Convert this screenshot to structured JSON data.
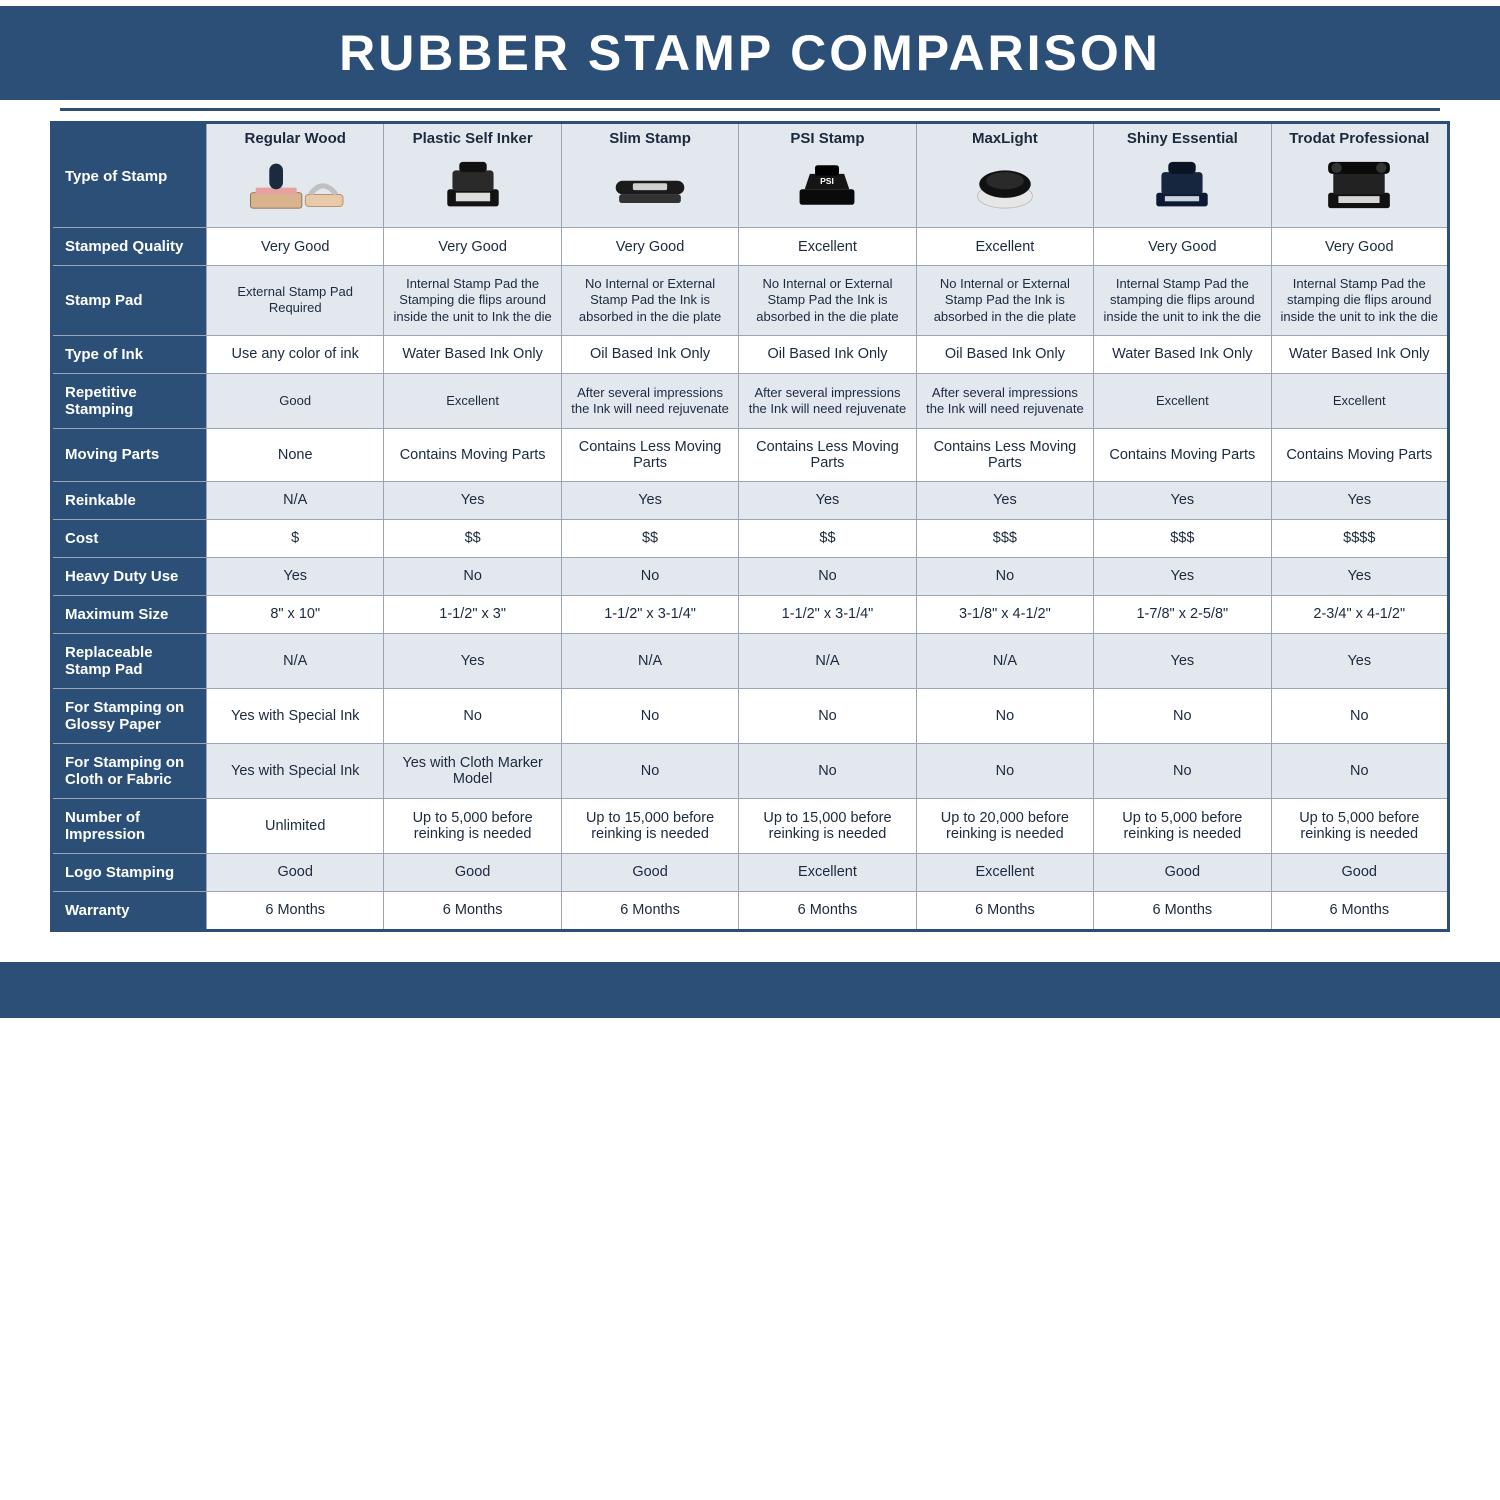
{
  "title": "RUBBER STAMP COMPARISON",
  "colors": {
    "brand": "#2c4f78",
    "row_alt": "#e3e8ef",
    "row_bg": "#ffffff",
    "border": "#9aa6b5",
    "text": "#1b2a3d"
  },
  "columns": [
    {
      "key": "wood",
      "label": "Regular Wood",
      "icon": "wood"
    },
    {
      "key": "plastic",
      "label": "Plastic Self Inker",
      "icon": "selfink"
    },
    {
      "key": "slim",
      "label": "Slim Stamp",
      "icon": "slim"
    },
    {
      "key": "psi",
      "label": "PSI Stamp",
      "icon": "psi"
    },
    {
      "key": "maxlight",
      "label": "MaxLight",
      "icon": "maxlight"
    },
    {
      "key": "shiny",
      "label": "Shiny Essential",
      "icon": "shiny"
    },
    {
      "key": "trodat",
      "label": "Trodat Professional",
      "icon": "trodat"
    }
  ],
  "rowHeader0": "Type of Stamp",
  "rows": [
    {
      "label": "Stamped Quality",
      "alt": false,
      "cells": [
        "Very Good",
        "Very Good",
        "Very Good",
        "Excellent",
        "Excellent",
        "Very Good",
        "Very Good"
      ]
    },
    {
      "label": "Stamp Pad",
      "alt": true,
      "small": true,
      "cells": [
        "External Stamp Pad Required",
        "Internal Stamp Pad the Stamping die flips around inside the unit to Ink the die",
        "No Internal or External Stamp Pad the Ink is absorbed in the die plate",
        "No Internal or External Stamp Pad the Ink is absorbed in the die plate",
        "No Internal or External Stamp Pad the Ink is absorbed in the die plate",
        "Internal Stamp Pad the stamping die flips around inside the unit to ink the die",
        "Internal Stamp Pad the stamping die flips around inside the unit to ink the die"
      ]
    },
    {
      "label": "Type of Ink",
      "alt": false,
      "cells": [
        "Use any color of ink",
        "Water Based Ink Only",
        "Oil Based Ink Only",
        "Oil Based Ink Only",
        "Oil Based Ink Only",
        "Water Based Ink Only",
        "Water Based Ink Only"
      ]
    },
    {
      "label": "Repetitive Stamping",
      "alt": true,
      "small": true,
      "cells": [
        "Good",
        "Excellent",
        "After several impressions the Ink will need rejuvenate",
        "After several impressions the Ink will need rejuvenate",
        "After several impressions the Ink will need rejuvenate",
        "Excellent",
        "Excellent"
      ]
    },
    {
      "label": "Moving Parts",
      "alt": false,
      "cells": [
        "None",
        "Contains Moving Parts",
        "Contains Less Moving Parts",
        "Contains Less Moving Parts",
        "Contains Less Moving Parts",
        "Contains Moving Parts",
        "Contains Moving Parts"
      ]
    },
    {
      "label": "Reinkable",
      "alt": true,
      "cells": [
        "N/A",
        "Yes",
        "Yes",
        "Yes",
        "Yes",
        "Yes",
        "Yes"
      ]
    },
    {
      "label": "Cost",
      "alt": false,
      "cells": [
        "$",
        "$$",
        "$$",
        "$$",
        "$$$",
        "$$$",
        "$$$$"
      ]
    },
    {
      "label": "Heavy Duty Use",
      "alt": true,
      "cells": [
        "Yes",
        "No",
        "No",
        "No",
        "No",
        "Yes",
        "Yes"
      ]
    },
    {
      "label": "Maximum Size",
      "alt": false,
      "cells": [
        "8\" x 10\"",
        "1-1/2\" x 3\"",
        "1-1/2\" x 3-1/4\"",
        "1-1/2\" x 3-1/4\"",
        "3-1/8\" x 4-1/2\"",
        "1-7/8\" x 2-5/8\"",
        "2-3/4\" x 4-1/2\""
      ]
    },
    {
      "label": "Replaceable Stamp Pad",
      "alt": true,
      "cells": [
        "N/A",
        "Yes",
        "N/A",
        "N/A",
        "N/A",
        "Yes",
        "Yes"
      ]
    },
    {
      "label": "For Stamping on Glossy Paper",
      "alt": false,
      "cells": [
        "Yes with Special Ink",
        "No",
        "No",
        "No",
        "No",
        "No",
        "No"
      ]
    },
    {
      "label": "For Stamping on Cloth or Fabric",
      "alt": true,
      "cells": [
        "Yes with Special Ink",
        "Yes with Cloth Marker Model",
        "No",
        "No",
        "No",
        "No",
        "No"
      ]
    },
    {
      "label": "Number of Impression",
      "alt": false,
      "cells": [
        "Unlimited",
        "Up to 5,000 before reinking is needed",
        "Up to 15,000 before reinking is needed",
        "Up to 15,000 before reinking is needed",
        "Up to 20,000 before reinking is needed",
        "Up to 5,000 before reinking is needed",
        "Up to 5,000 before reinking is needed"
      ]
    },
    {
      "label": "Logo Stamping",
      "alt": true,
      "cells": [
        "Good",
        "Good",
        "Good",
        "Excellent",
        "Excellent",
        "Good",
        "Good"
      ]
    },
    {
      "label": "Warranty",
      "alt": false,
      "cells": [
        "6 Months",
        "6 Months",
        "6 Months",
        "6 Months",
        "6 Months",
        "6 Months",
        "6 Months"
      ]
    }
  ]
}
